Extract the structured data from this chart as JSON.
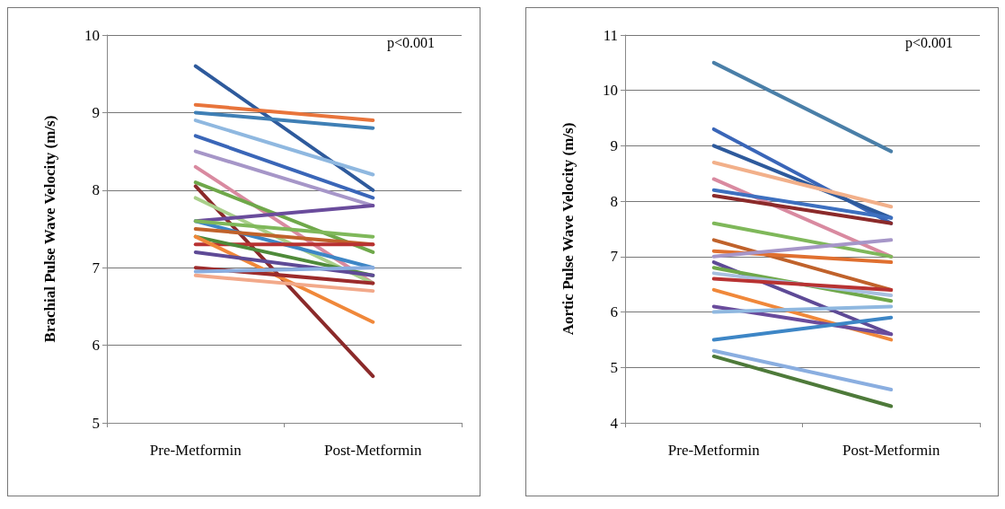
{
  "chart_data": [
    {
      "type": "line",
      "ylabel": "Brachial Pulse Wave Velocity (m/s)",
      "categories": [
        "Pre-Metformin",
        "Post-Metformin"
      ],
      "ylim": [
        5,
        10
      ],
      "yticks": [
        5,
        6,
        7,
        8,
        9,
        10
      ],
      "grid": "y",
      "marker": "none",
      "annotations": [
        "p<0.001"
      ],
      "series": [
        {
          "color": "#2e5a9c",
          "values": [
            9.6,
            8.0
          ]
        },
        {
          "color": "#e8743b",
          "values": [
            9.1,
            8.9
          ]
        },
        {
          "color": "#3f7fb5",
          "values": [
            9.0,
            8.8
          ]
        },
        {
          "color": "#8fb8e0",
          "values": [
            8.9,
            8.2
          ]
        },
        {
          "color": "#3a66b8",
          "values": [
            8.7,
            7.9
          ]
        },
        {
          "color": "#a696c8",
          "values": [
            8.5,
            7.8
          ]
        },
        {
          "color": "#d98aa0",
          "values": [
            8.3,
            6.8
          ]
        },
        {
          "color": "#6fa84a",
          "values": [
            8.1,
            7.2
          ]
        },
        {
          "color": "#8b2a2a",
          "values": [
            8.05,
            5.6
          ]
        },
        {
          "color": "#a9cf8a",
          "values": [
            7.9,
            6.8
          ]
        },
        {
          "color": "#6a4c9c",
          "values": [
            7.6,
            7.8
          ]
        },
        {
          "color": "#3d86c6",
          "values": [
            7.6,
            7.0
          ]
        },
        {
          "color": "#7fb85a",
          "values": [
            7.6,
            7.4
          ]
        },
        {
          "color": "#c0622b",
          "values": [
            7.5,
            7.3
          ]
        },
        {
          "color": "#b83232",
          "values": [
            7.3,
            7.3
          ]
        },
        {
          "color": "#4e8a3a",
          "values": [
            7.4,
            6.9
          ]
        },
        {
          "color": "#f0883a",
          "values": [
            7.4,
            6.3
          ]
        },
        {
          "color": "#5e4a96",
          "values": [
            7.2,
            6.9
          ]
        },
        {
          "color": "#9c2b2b",
          "values": [
            7.0,
            6.8
          ]
        },
        {
          "color": "#8aaee0",
          "values": [
            6.95,
            7.0
          ]
        },
        {
          "color": "#f2a98a",
          "values": [
            6.9,
            6.7
          ]
        }
      ]
    },
    {
      "type": "line",
      "ylabel": "Aortic Pulse Wave Velocity (m/s)",
      "categories": [
        "Pre-Metformin",
        "Post-Metformin"
      ],
      "ylim": [
        4,
        11
      ],
      "yticks": [
        4,
        5,
        6,
        7,
        8,
        9,
        10,
        11
      ],
      "grid": "y",
      "marker": "none",
      "annotations": [
        "p<0.001"
      ],
      "series": [
        {
          "color": "#4a7fa8",
          "values": [
            10.5,
            8.9
          ]
        },
        {
          "color": "#3a66b8",
          "values": [
            9.3,
            7.6
          ]
        },
        {
          "color": "#2e5a9c",
          "values": [
            9.0,
            7.7
          ]
        },
        {
          "color": "#f2b08a",
          "values": [
            8.7,
            7.9
          ]
        },
        {
          "color": "#d98aa0",
          "values": [
            8.4,
            7.0
          ]
        },
        {
          "color": "#3d70c0",
          "values": [
            8.2,
            7.7
          ]
        },
        {
          "color": "#8b2a2a",
          "values": [
            8.1,
            7.6
          ]
        },
        {
          "color": "#7fb85a",
          "values": [
            7.6,
            7.0
          ]
        },
        {
          "color": "#c0622b",
          "values": [
            7.3,
            6.4
          ]
        },
        {
          "color": "#e07030",
          "values": [
            7.1,
            6.9
          ]
        },
        {
          "color": "#a696c8",
          "values": [
            7.0,
            7.3
          ]
        },
        {
          "color": "#5e4a96",
          "values": [
            6.9,
            5.6
          ]
        },
        {
          "color": "#6fa84a",
          "values": [
            6.8,
            6.2
          ]
        },
        {
          "color": "#a8c0e0",
          "values": [
            6.7,
            6.3
          ]
        },
        {
          "color": "#b83232",
          "values": [
            6.6,
            6.4
          ]
        },
        {
          "color": "#f0883a",
          "values": [
            6.4,
            5.5
          ]
        },
        {
          "color": "#6a4c9c",
          "values": [
            6.1,
            5.6
          ]
        },
        {
          "color": "#8fb8e0",
          "values": [
            6.0,
            6.1
          ]
        },
        {
          "color": "#3d86c6",
          "values": [
            5.5,
            5.9
          ]
        },
        {
          "color": "#8aaee0",
          "values": [
            5.3,
            4.6
          ]
        },
        {
          "color": "#4e7a3a",
          "values": [
            5.2,
            4.3
          ]
        }
      ]
    }
  ]
}
